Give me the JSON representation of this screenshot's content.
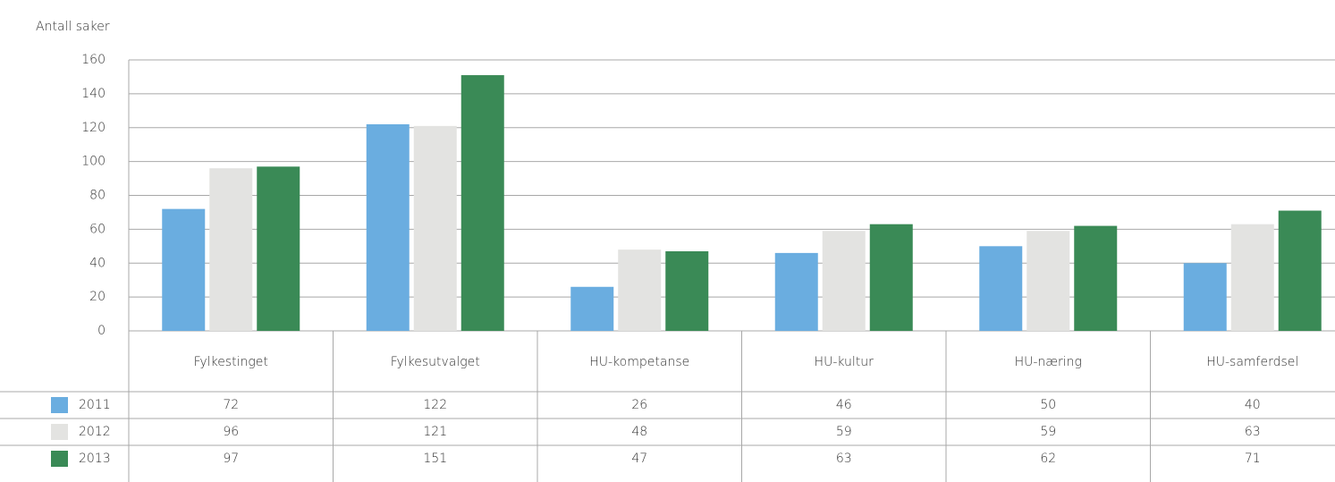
{
  "chart_data": {
    "type": "bar",
    "y_label": "Antall saker",
    "categories": [
      "Fylkestinget",
      "Fylkesutvalget",
      "HU-kompetanse",
      "HU-kultur",
      "HU-næring",
      "HU-samferdsel"
    ],
    "series": [
      {
        "name": "2011",
        "color": "#6aade0",
        "values": [
          72,
          122,
          26,
          46,
          50,
          40
        ]
      },
      {
        "name": "2012",
        "color": "#e3e3e1",
        "values": [
          96,
          121,
          48,
          59,
          59,
          63
        ]
      },
      {
        "name": "2013",
        "color": "#3a8a56",
        "values": [
          97,
          151,
          47,
          63,
          62,
          71
        ]
      }
    ],
    "ylim": [
      0,
      160
    ],
    "yticks": [
      0,
      20,
      40,
      60,
      80,
      100,
      120,
      140,
      160
    ],
    "grid": true
  }
}
